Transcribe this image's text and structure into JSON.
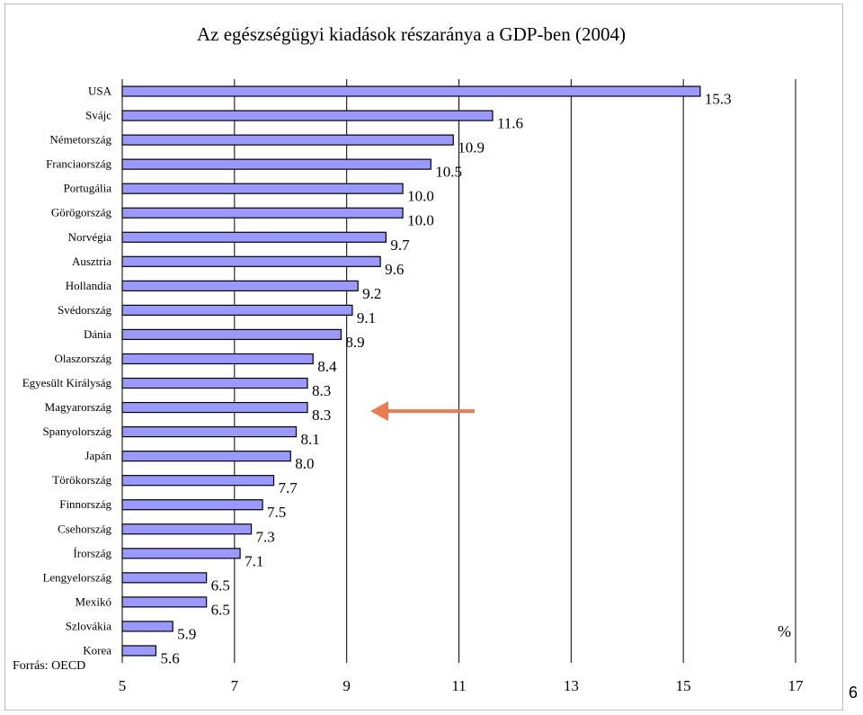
{
  "page": {
    "number": "6"
  },
  "chart_data": {
    "type": "bar",
    "orientation": "horizontal",
    "title": "Az egészségügyi kiadások részaránya a GDP-ben (2004)",
    "source": "Forrás: OECD",
    "unit_label": "%",
    "categories": [
      "USA",
      "Svájc",
      "Németország",
      "Franciaország",
      "Portugália",
      "Görögország",
      "Norvégia",
      "Ausztria",
      "Hollandia",
      "Svédország",
      "Dánia",
      "Olaszország",
      "Egyesült Királyság",
      "Magyarország",
      "Spanyolország",
      "Japán",
      "Törökország",
      "Finnország",
      "Csehország",
      "Írország",
      "Lengyelország",
      "Mexikó",
      "Szlovákia",
      "Korea"
    ],
    "values": [
      15.3,
      11.6,
      10.9,
      10.5,
      10.0,
      10.0,
      9.7,
      9.6,
      9.2,
      9.1,
      8.9,
      8.4,
      8.3,
      8.3,
      8.1,
      8.0,
      7.7,
      7.5,
      7.3,
      7.1,
      6.5,
      6.5,
      5.9,
      5.6
    ],
    "value_labels": [
      "15.3",
      "11.6",
      "10.9",
      "10.5",
      "10.0",
      "10.0",
      "9.7",
      "9.6",
      "9.2",
      "9.1",
      "8.9",
      "8.4",
      "8.3",
      "8.3",
      "8.1",
      "8.0",
      "7.7",
      "7.5",
      "7.3",
      "7.1",
      "6.5",
      "6.5",
      "5.9",
      "5.6"
    ],
    "xlim": [
      5,
      17
    ],
    "xticks": [
      "5",
      "7",
      "9",
      "11",
      "13",
      "15",
      "17"
    ],
    "grid": "vertical lines at major ticks",
    "highlight": {
      "category": "Magyarország",
      "marker": "arrow",
      "color": "#ee7a50"
    },
    "colors": {
      "bar_fill": "#9999ff",
      "bar_stroke": "#000000",
      "grid": "#000000"
    }
  }
}
